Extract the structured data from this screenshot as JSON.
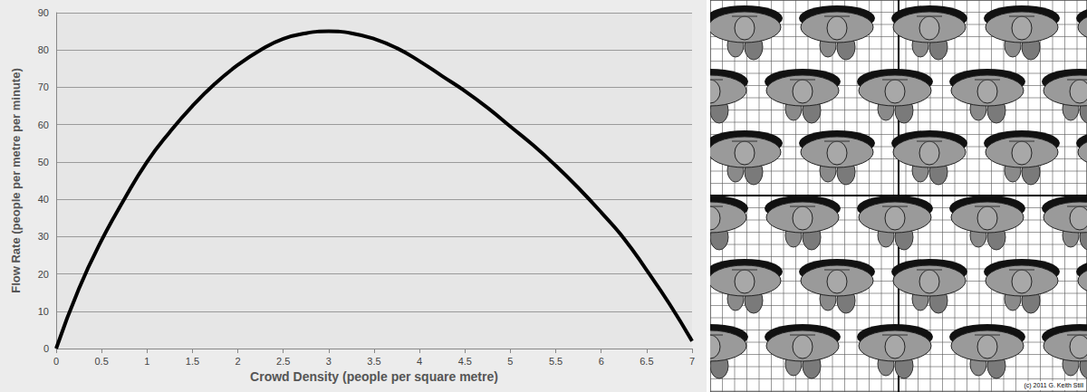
{
  "chart_data": {
    "type": "line",
    "xlabel": "Crowd Density (people per square metre)",
    "ylabel": "Flow Rate (people per metre per minute)",
    "x": [
      0,
      0.25,
      0.5,
      0.75,
      1,
      1.25,
      1.5,
      1.75,
      2,
      2.25,
      2.5,
      2.75,
      3,
      3.25,
      3.5,
      3.75,
      4,
      4.25,
      4.5,
      4.75,
      5,
      5.25,
      5.5,
      5.75,
      6,
      6.25,
      6.5,
      6.75,
      7
    ],
    "values": [
      0,
      16,
      29,
      40,
      50,
      58,
      65,
      71,
      76,
      80,
      83,
      84.5,
      85,
      84.5,
      83,
      80.5,
      77,
      73,
      69,
      64.5,
      59.5,
      54.5,
      49,
      43,
      36.5,
      29.5,
      21,
      12,
      2
    ],
    "color": "#000000",
    "line_style": "solid",
    "xlim": [
      0,
      7
    ],
    "xticks": [
      0,
      0.5,
      1,
      1.5,
      2,
      2.5,
      3,
      3.5,
      4,
      4.5,
      5,
      5.5,
      6,
      6.5,
      7
    ],
    "ylim": [
      0,
      90
    ],
    "yticks": [
      0,
      10,
      20,
      30,
      40,
      50,
      60,
      70,
      80,
      90
    ],
    "grid": true
  },
  "illustration": {
    "credit": "(c) 2011 G. Keith Still"
  }
}
